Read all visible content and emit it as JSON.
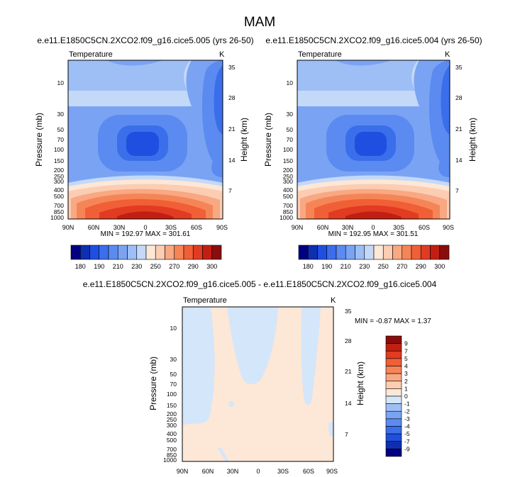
{
  "page_title": "MAM",
  "colors": {
    "full_scale": [
      "#000080",
      "#0d2fb0",
      "#1f4fe0",
      "#3b6eea",
      "#5b8bf0",
      "#7aa4f3",
      "#9ebef6",
      "#c4d9f8",
      "#fde7d6",
      "#fbcdb2",
      "#f8a882",
      "#f58557",
      "#f15f37",
      "#e13b22",
      "#c21f12",
      "#8a0d0d"
    ],
    "diff_scale": [
      "#000080",
      "#0d2fb0",
      "#1f4fe0",
      "#3b6eea",
      "#5b8bf0",
      "#7aa4f3",
      "#9ebef6",
      "#d4e6fa",
      "#fde7d6",
      "#fbcdb2",
      "#f8a882",
      "#f58557",
      "#f15f37",
      "#e13b22",
      "#c21f12",
      "#8a0d0d"
    ]
  },
  "chart_data": [
    {
      "id": "panel-left",
      "type": "contour",
      "title": "e.e11.E1850C5CN.2XCO2.f09_g16.cice5.005 (yrs 26-50)",
      "variable_label": "Temperature",
      "units_label": "K",
      "ylabel": "Pressure (mb)",
      "ylabel_right": "Height (km)",
      "x_ticks": [
        "90N",
        "60N",
        "30N",
        "0",
        "30S",
        "60S",
        "90S"
      ],
      "y_ticks": [
        "10",
        "30",
        "50",
        "70",
        "100",
        "150",
        "200",
        "250",
        "300",
        "400",
        "500",
        "700",
        "850",
        "1000"
      ],
      "y_ticks_right": [
        "35",
        "28",
        "21",
        "14",
        "7"
      ],
      "min_max_text": "MIN = 192.97   MAX = 301.61",
      "min": 192.97,
      "max": 301.61
    },
    {
      "id": "panel-right",
      "type": "contour",
      "title": "e.e11.E1850C5CN.2XCO2.f09_g16.cice5.004 (yrs 26-50)",
      "variable_label": "Temperature",
      "units_label": "K",
      "ylabel": "Pressure (mb)",
      "ylabel_right": "Height (km)",
      "x_ticks": [
        "90N",
        "60N",
        "30N",
        "0",
        "30S",
        "60S",
        "90S"
      ],
      "y_ticks": [
        "10",
        "30",
        "50",
        "70",
        "100",
        "150",
        "200",
        "250",
        "300",
        "400",
        "500",
        "700",
        "850",
        "1000"
      ],
      "y_ticks_right": [
        "35",
        "28",
        "21",
        "14",
        "7"
      ],
      "min_max_text": "MIN = 192.95   MAX = 301.51",
      "min": 192.95,
      "max": 301.51
    },
    {
      "id": "panel-diff",
      "type": "contour",
      "title": "e.e11.E1850C5CN.2XCO2.f09_g16.cice5.005 - e.e11.E1850C5CN.2XCO2.f09_g16.cice5.004",
      "variable_label": "Temperature",
      "units_label": "K",
      "ylabel": "Pressure (mb)",
      "ylabel_right": "Height (km)",
      "x_ticks": [
        "90N",
        "60N",
        "30N",
        "0",
        "30S",
        "60S",
        "90S"
      ],
      "y_ticks": [
        "10",
        "30",
        "50",
        "70",
        "100",
        "150",
        "200",
        "250",
        "300",
        "400",
        "500",
        "700",
        "850",
        "1000"
      ],
      "y_ticks_right": [
        "35",
        "28",
        "21",
        "14",
        "7"
      ],
      "min_max_text": "MIN =  -0.87   MAX =   1.37",
      "min": -0.87,
      "max": 1.37
    }
  ],
  "colorbars": {
    "full": {
      "labels": [
        "180",
        "190",
        "210",
        "230",
        "250",
        "270",
        "290",
        "300"
      ]
    },
    "diff": {
      "labels": [
        "9",
        "7",
        "5",
        "4",
        "3",
        "2",
        "1",
        "0",
        "-1",
        "-2",
        "-3",
        "-4",
        "-5",
        "-7",
        "-9"
      ]
    }
  }
}
